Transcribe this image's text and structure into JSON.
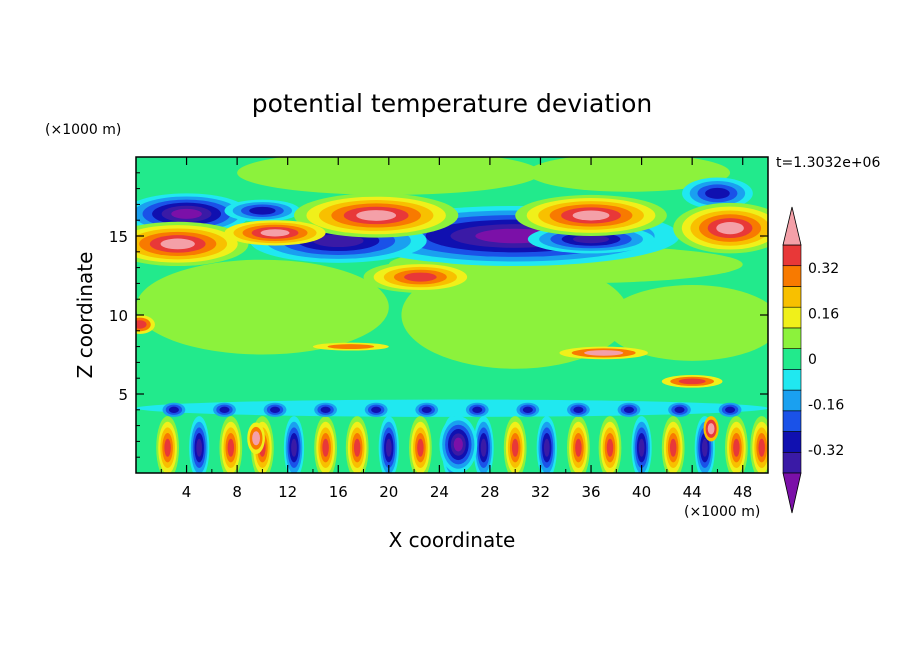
{
  "chart_data": {
    "type": "heatmap",
    "title": "potential temperature deviation",
    "xlabel": "X coordinate",
    "ylabel": "Z coordinate",
    "x_unit": "(×1000 m)",
    "y_unit": "(×1000 m)",
    "time_label": "t=1.3032e+06",
    "xlim": [
      0,
      50
    ],
    "ylim": [
      0,
      20
    ],
    "x_ticks": [
      "4",
      "8",
      "12",
      "16",
      "20",
      "24",
      "28",
      "32",
      "36",
      "40",
      "44",
      "48"
    ],
    "y_ticks": [
      "5",
      "10",
      "15"
    ],
    "colorbar": {
      "levels": [
        -0.48,
        -0.4,
        -0.32,
        -0.24,
        -0.16,
        -0.08,
        0,
        0.08,
        0.16,
        0.24,
        0.32,
        0.4,
        0.48
      ],
      "colors": [
        "#7b10a8",
        "#3a1aa6",
        "#1010b0",
        "#1a52e8",
        "#1aa0f0",
        "#20e8f0",
        "#22ea8c",
        "#8cf23c",
        "#f0f01a",
        "#f8c000",
        "#f87a00",
        "#e83838",
        "#f4a0a8"
      ],
      "labels": [
        "0.32",
        "0.16",
        "0",
        "-0.16",
        "-0.32"
      ],
      "extend": "both"
    }
  }
}
